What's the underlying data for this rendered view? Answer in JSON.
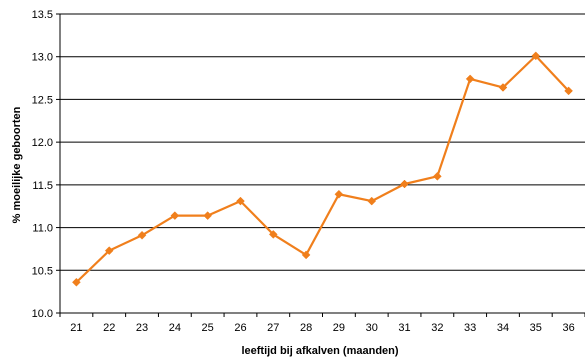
{
  "chart_data": {
    "type": "line",
    "title": "",
    "xlabel": "leeftijd bij afkalven (maanden)",
    "ylabel": "% moeilijke geboorten",
    "x": [
      21,
      22,
      23,
      24,
      25,
      26,
      27,
      28,
      29,
      30,
      31,
      32,
      33,
      34,
      35,
      36
    ],
    "series": [
      {
        "values": [
          10.36,
          10.73,
          10.91,
          11.14,
          11.14,
          11.31,
          10.92,
          10.68,
          11.39,
          11.31,
          11.51,
          11.6,
          12.74,
          12.64,
          13.01,
          12.6
        ]
      }
    ],
    "ylim": [
      10.0,
      13.5
    ],
    "yticks": [
      "10.0",
      "10.5",
      "11.0",
      "11.5",
      "12.0",
      "12.5",
      "13.0",
      "13.5"
    ],
    "xticks": [
      "21",
      "22",
      "23",
      "24",
      "25",
      "26",
      "27",
      "28",
      "29",
      "30",
      "31",
      "32",
      "33",
      "34",
      "35",
      "36"
    ],
    "grid": "horizontal",
    "line_color": "#F07F1C",
    "marker": "diamond",
    "legend": "none"
  }
}
